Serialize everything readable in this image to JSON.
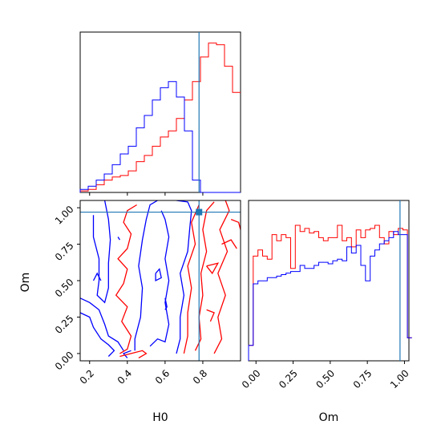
{
  "chart_data": {
    "type": "corner",
    "parameters": [
      "H0",
      "Om"
    ],
    "truths": {
      "H0": 0.78,
      "Om": 0.97
    },
    "colors": {
      "series_a": "#ff0000",
      "series_b": "#0000ff",
      "truth": "#1f77b4"
    },
    "series": [
      {
        "color": "#ff0000"
      },
      {
        "color": "#0000ff"
      }
    ],
    "h0_hist": {
      "bin_edges": [
        0.15,
        0.1925,
        0.235,
        0.2775,
        0.32,
        0.3625,
        0.405,
        0.4475,
        0.49,
        0.5325,
        0.575,
        0.6175,
        0.66,
        0.7025,
        0.745,
        0.7875,
        0.83,
        0.8725,
        0.915,
        0.9575,
        1.0
      ],
      "red": [
        0.01,
        0.02,
        0.05,
        0.08,
        0.1,
        0.11,
        0.14,
        0.2,
        0.24,
        0.3,
        0.36,
        0.4,
        0.48,
        0.6,
        0.72,
        0.88,
        0.97,
        0.96,
        0.82,
        0.65
      ],
      "blue": [
        0.02,
        0.04,
        0.08,
        0.12,
        0.18,
        0.25,
        0.3,
        0.42,
        0.5,
        0.6,
        0.68,
        0.72,
        0.62,
        0.4,
        0.08,
        0.0,
        0.0,
        0.0,
        0.0,
        0.0
      ],
      "xlim": [
        0.15,
        1.0
      ],
      "xticks": [
        "0.2",
        "0.4",
        "0.6",
        "0.8"
      ]
    },
    "om_hist": {
      "bin_edges": [
        -0.05,
        -0.0185,
        0.013,
        0.0445,
        0.076,
        0.1075,
        0.139,
        0.1705,
        0.202,
        0.2335,
        0.265,
        0.2965,
        0.328,
        0.3595,
        0.391,
        0.4225,
        0.454,
        0.4855,
        0.517,
        0.5485,
        0.58,
        0.6115,
        0.643,
        0.6745,
        0.706,
        0.7375,
        0.769,
        0.8005,
        0.832,
        0.8635,
        0.895,
        0.9265,
        0.958,
        0.9895,
        1.02,
        1.05
      ],
      "red": [
        0.1,
        0.68,
        0.72,
        0.68,
        0.66,
        0.82,
        0.78,
        0.82,
        0.8,
        0.6,
        0.88,
        0.84,
        0.86,
        0.83,
        0.84,
        0.8,
        0.78,
        0.8,
        0.8,
        0.88,
        0.78,
        0.8,
        0.74,
        0.85,
        0.8,
        0.85,
        0.86,
        0.88,
        0.8,
        0.76,
        0.84,
        0.82,
        0.86,
        0.85,
        0.15
      ],
      "blue": [
        0.1,
        0.5,
        0.52,
        0.52,
        0.54,
        0.54,
        0.55,
        0.56,
        0.57,
        0.58,
        0.58,
        0.62,
        0.6,
        0.6,
        0.62,
        0.64,
        0.64,
        0.63,
        0.65,
        0.66,
        0.65,
        0.74,
        0.7,
        0.75,
        0.62,
        0.52,
        0.68,
        0.72,
        0.76,
        0.78,
        0.8,
        0.84,
        0.82,
        0.82,
        0.15
      ],
      "xlim": [
        -0.05,
        1.03
      ],
      "xticks": [
        "0.00",
        "0.25",
        "0.50",
        "0.75",
        "1.00"
      ]
    },
    "contour_panel": {
      "xlim": [
        0.15,
        1.0
      ],
      "ylim": [
        -0.05,
        1.05
      ],
      "xticks": [
        "0.2",
        "0.4",
        "0.6",
        "0.8"
      ],
      "yticks": [
        "0.00",
        "0.25",
        "0.50",
        "0.75",
        "1.00"
      ]
    },
    "xlabels": {
      "H0": "H0",
      "Om": "Om"
    },
    "ylabel": "Om"
  }
}
